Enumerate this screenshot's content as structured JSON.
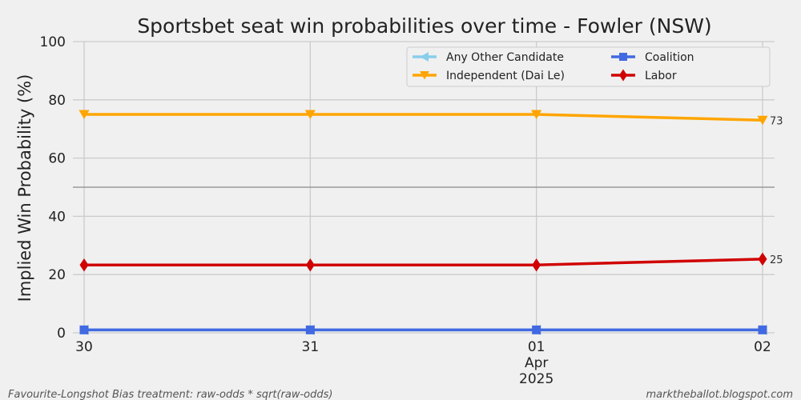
{
  "chart_data": {
    "type": "line",
    "title": "Sportsbet seat win probabilities over time - Fowler (NSW)",
    "xlabel": "",
    "ylabel": "Implied Win Probability (%)",
    "ylim": [
      0,
      100
    ],
    "yticks": [
      0,
      20,
      40,
      60,
      80,
      100
    ],
    "reference_line": 50,
    "x": [
      "2025-03-30",
      "2025-03-31",
      "2025-04-01",
      "2025-04-02"
    ],
    "xtick_labels": [
      "30",
      "31",
      "01",
      "02"
    ],
    "xtick_secondary": {
      "month": "Apr",
      "year": "2025"
    },
    "grid": true,
    "legend_position": "top-right",
    "series": [
      {
        "name": "Any Other Candidate",
        "color": "#87ceeb",
        "marker": "triangle-left",
        "values": [
          1,
          1,
          1,
          1
        ]
      },
      {
        "name": "Coalition",
        "color": "#4169e1",
        "marker": "square",
        "values": [
          1,
          1,
          1,
          1
        ]
      },
      {
        "name": "Independent (Dai Le)",
        "color": "#ffa500",
        "marker": "triangle-down",
        "values": [
          75,
          75,
          75,
          73
        ],
        "end_label": "73"
      },
      {
        "name": "Labor",
        "color": "#d00000",
        "marker": "diamond",
        "values": [
          23.3,
          23.3,
          23.3,
          25.3
        ],
        "end_label": "25"
      }
    ]
  },
  "footer": {
    "left": "Favourite-Longshot Bias treatment: raw-odds * sqrt(raw-odds)",
    "right": "marktheballot.blogspot.com"
  }
}
